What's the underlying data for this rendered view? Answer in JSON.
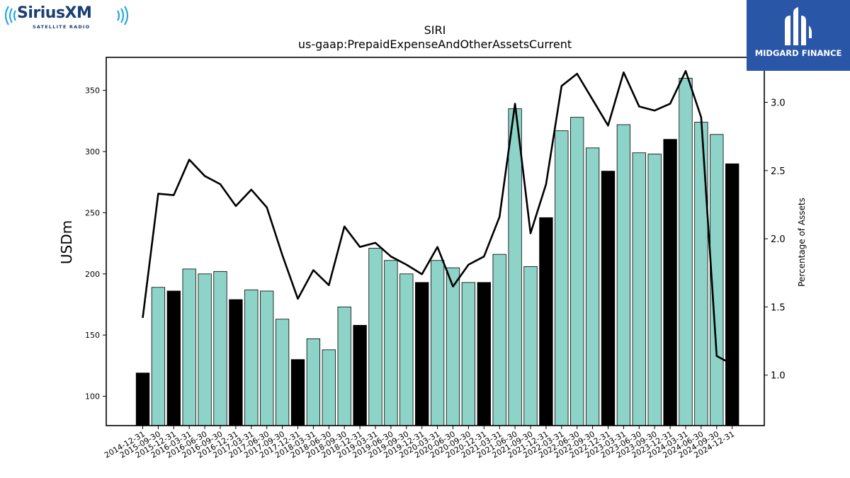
{
  "logos": {
    "left_brand": "SiriusXM",
    "left_sub": "SATELLITE RADIO",
    "right_name": "MIDGARD FINANCE"
  },
  "colors": {
    "bar_normal": "#8dd3c7",
    "bar_highlight": "#000000",
    "line": "#000000",
    "logo_right_bg": "#2a56a8",
    "logo_left_text": "#1a3f73",
    "logo_left_waves": "#29a8e0"
  },
  "chart_data": {
    "type": "bar",
    "title": "SIRI",
    "subtitle": "us-gaap:PrepaidExpenseAndOtherAssetsCurrent",
    "ylabel": "USDm",
    "y2label": "Percentage of Assets",
    "ylim": [
      76,
      377
    ],
    "y2lim": [
      0.63,
      3.33
    ],
    "yticks": [
      100,
      150,
      200,
      250,
      300,
      350
    ],
    "y2ticks": [
      1.0,
      1.5,
      2.0,
      2.5,
      3.0
    ],
    "categories": [
      "2014-12-31",
      "2015-09-30",
      "2015-12-31",
      "2016-03-31",
      "2016-06-30",
      "2016-09-30",
      "2016-12-31",
      "2017-03-31",
      "2017-06-30",
      "2017-09-30",
      "2017-12-31",
      "2018-03-31",
      "2018-06-30",
      "2018-09-30",
      "2018-12-31",
      "2019-03-31",
      "2019-06-30",
      "2019-09-30",
      "2019-12-31",
      "2020-03-31",
      "2020-06-30",
      "2020-09-30",
      "2020-12-31",
      "2021-03-31",
      "2021-06-30",
      "2021-09-30",
      "2021-12-31",
      "2022-03-31",
      "2022-06-30",
      "2022-09-30",
      "2022-12-31",
      "2023-03-31",
      "2023-06-30",
      "2023-09-30",
      "2023-12-31",
      "2024-03-31",
      "2024-06-30",
      "2024-09-30",
      "2024-12-31"
    ],
    "series": [
      {
        "type": "bar",
        "values": [
          119,
          189,
          186,
          204,
          200,
          202,
          179,
          187,
          186,
          163,
          130,
          147,
          138,
          173,
          158,
          221,
          211,
          200,
          193,
          211,
          205,
          193,
          193,
          216,
          335,
          206,
          246,
          317,
          328,
          303,
          284,
          322,
          299,
          298,
          310,
          360,
          324,
          314,
          290
        ],
        "highlight": [
          true,
          false,
          true,
          false,
          false,
          false,
          true,
          false,
          false,
          false,
          true,
          false,
          false,
          false,
          true,
          false,
          false,
          false,
          true,
          false,
          false,
          false,
          true,
          false,
          false,
          false,
          true,
          false,
          false,
          false,
          true,
          false,
          false,
          false,
          true,
          false,
          false,
          false,
          true
        ]
      },
      {
        "type": "line",
        "axis": "right",
        "values": [
          1.42,
          2.33,
          2.32,
          2.58,
          2.46,
          2.4,
          2.24,
          2.36,
          2.23,
          1.88,
          1.56,
          1.77,
          1.66,
          2.09,
          1.94,
          1.97,
          1.87,
          1.81,
          1.74,
          1.94,
          1.65,
          1.81,
          1.87,
          2.16,
          2.99,
          2.04,
          2.4,
          3.12,
          3.21,
          3.02,
          2.83,
          3.22,
          2.97,
          2.94,
          2.99,
          3.23,
          2.89,
          1.14,
          1.08
        ]
      }
    ],
    "grid": false
  }
}
